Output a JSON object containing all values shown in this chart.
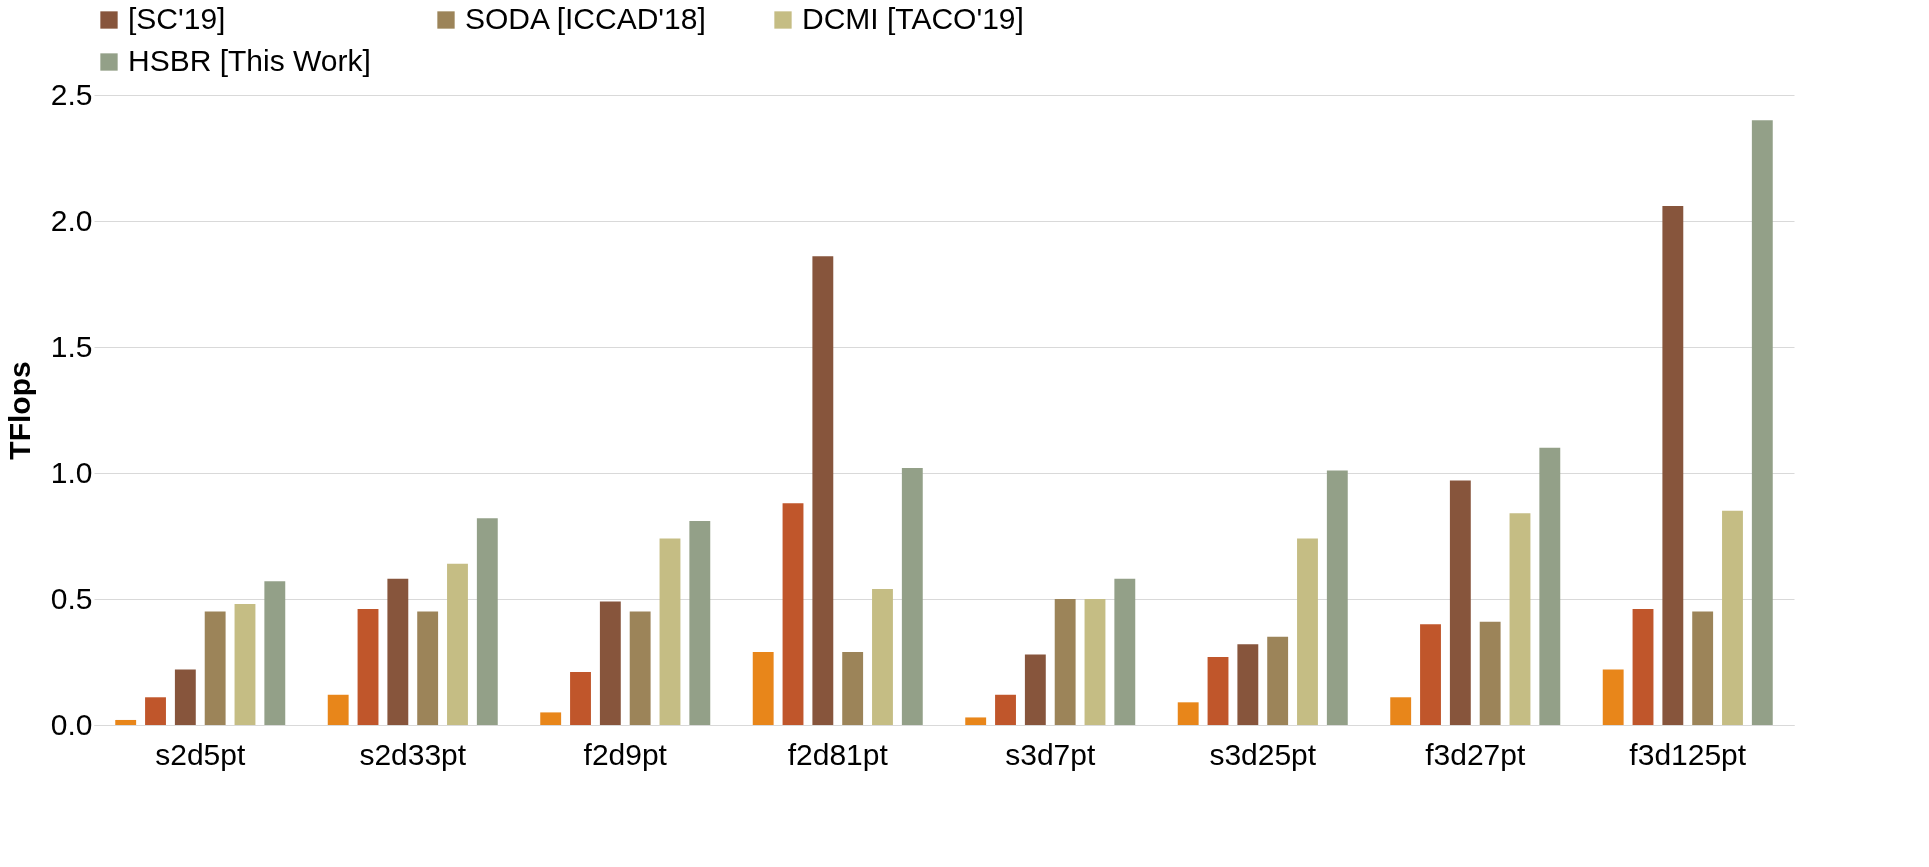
{
  "chart_data": {
    "type": "bar",
    "ylabel": "TFlops",
    "categories": [
      "s2d5pt",
      "s2d33pt",
      "f2d9pt",
      "f2d81pt",
      "s3d7pt",
      "s3d25pt",
      "f3d27pt",
      "f3d125pt"
    ],
    "series": [
      {
        "color": "#e8861a",
        "values": [
          0.02,
          0.12,
          0.05,
          0.29,
          0.03,
          0.09,
          0.11,
          0.22
        ]
      },
      {
        "color": "#c0562b",
        "values": [
          0.11,
          0.46,
          0.21,
          0.88,
          0.12,
          0.27,
          0.4,
          0.46
        ]
      },
      {
        "name": "[SC'19]",
        "color": "#87553c",
        "values": [
          0.22,
          0.58,
          0.49,
          1.86,
          0.28,
          0.32,
          0.97,
          2.06
        ]
      },
      {
        "name": "SODA [ICCAD'18]",
        "color": "#9c8459",
        "values": [
          0.45,
          0.45,
          0.45,
          0.29,
          0.5,
          0.35,
          0.41,
          0.45
        ]
      },
      {
        "name": "DCMI [TACO'19]",
        "color": "#c5bd84",
        "values": [
          0.48,
          0.64,
          0.74,
          0.54,
          0.5,
          0.74,
          0.84,
          0.85
        ]
      },
      {
        "name": "HSBR [This Work]",
        "color": "#93a088",
        "values": [
          0.57,
          0.82,
          0.81,
          1.02,
          0.58,
          1.01,
          1.1,
          2.4
        ]
      }
    ],
    "ylim": [
      0,
      2.5
    ],
    "yticks": [
      {
        "value": 0,
        "label": "0.0"
      },
      {
        "value": 0.5,
        "label": "0.5"
      },
      {
        "value": 1,
        "label": "1.0"
      },
      {
        "value": 1.5,
        "label": "1.5"
      },
      {
        "value": 2,
        "label": "2.0"
      },
      {
        "value": 2.5,
        "label": "2.5"
      }
    ],
    "grid": "y",
    "legend": "top"
  }
}
